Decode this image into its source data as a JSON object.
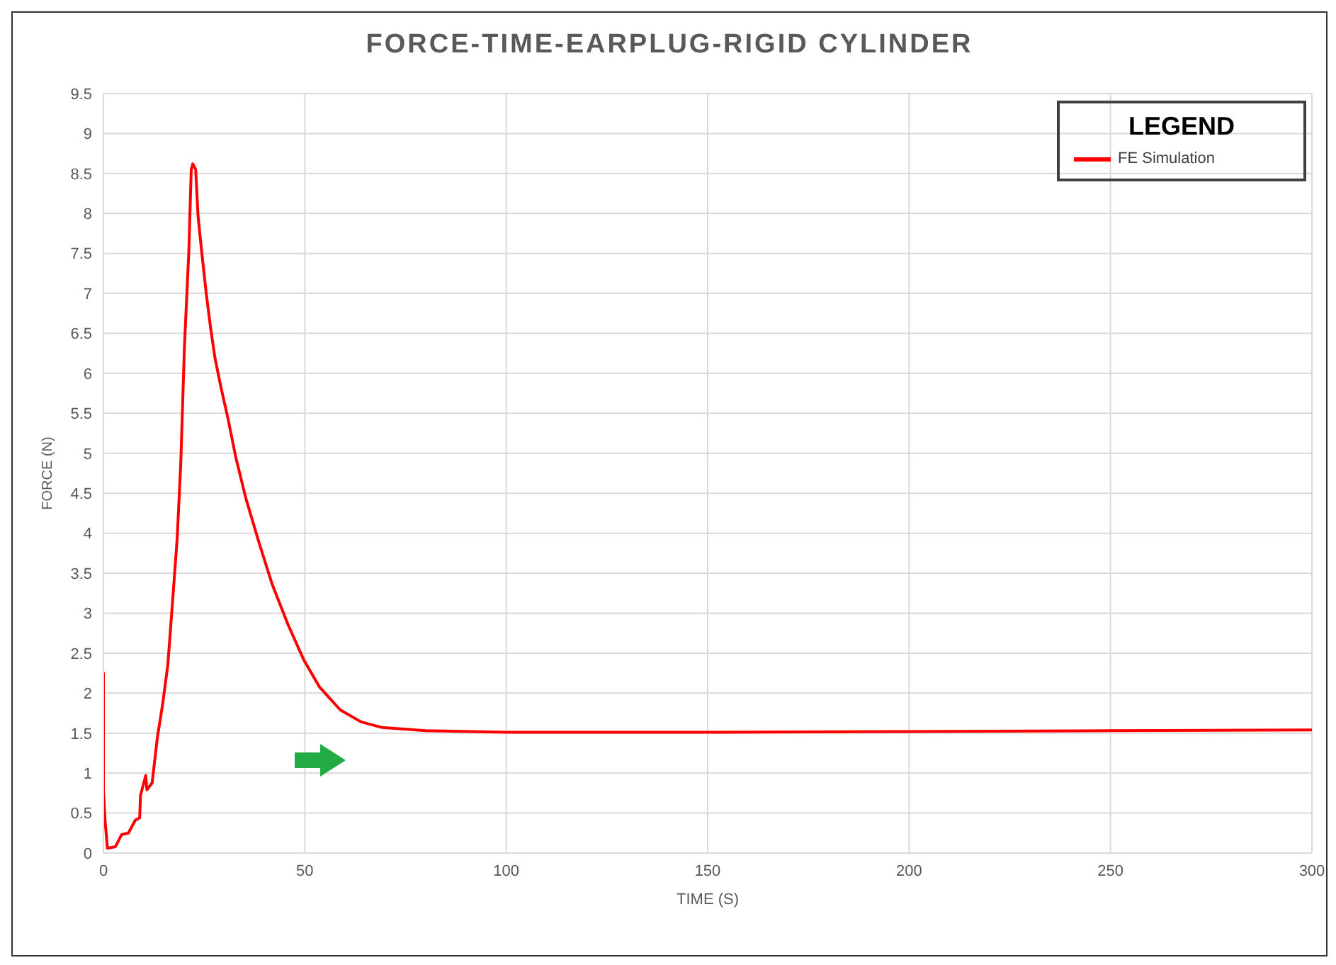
{
  "chart_data": {
    "type": "line",
    "title": "FORCE-TIME-EARPLUG-RIGID CYLINDER",
    "xlabel": "TIME (S)",
    "ylabel": "FORCE (N)",
    "legend_title": "LEGEND",
    "legend": "top right",
    "grid": true,
    "marker": "none",
    "line_style": "solid",
    "x": [
      0,
      0,
      0.4,
      1.0,
      3.0,
      4.5,
      6.2,
      7.9,
      9.0,
      9.2,
      10.5,
      10.8,
      12.1,
      13.4,
      14.7,
      16.0,
      17.3,
      18.3,
      19.2,
      20.1,
      21.2,
      21.8,
      22.2,
      22.9,
      23.5,
      24.4,
      25.5,
      26.6,
      27.7,
      29.2,
      30.9,
      32.9,
      35.4,
      38.7,
      41.9,
      45.8,
      49.7,
      53.6,
      58.8,
      64.0,
      69.2,
      80,
      100,
      150,
      200,
      250,
      300
    ],
    "series": [
      {
        "name": "FE Simulation",
        "color": "#ff0000",
        "values": [
          2.26,
          0.8,
          0.41,
          0.06,
          0.08,
          0.23,
          0.25,
          0.41,
          0.44,
          0.72,
          0.97,
          0.79,
          0.88,
          1.45,
          1.86,
          2.36,
          3.24,
          3.93,
          4.87,
          6.32,
          7.52,
          8.55,
          8.62,
          8.55,
          7.96,
          7.52,
          7.01,
          6.57,
          6.19,
          5.82,
          5.44,
          4.94,
          4.43,
          3.87,
          3.36,
          2.86,
          2.42,
          2.08,
          1.79,
          1.64,
          1.57,
          1.53,
          1.51,
          1.51,
          1.52,
          1.53,
          1.54
        ]
      }
    ],
    "xlim": [
      0,
      300
    ],
    "xticks": [
      0,
      50,
      100,
      150,
      200,
      250,
      300
    ],
    "ylim": [
      0,
      9.5
    ],
    "yticks": [
      0,
      0.5,
      1,
      1.5,
      2,
      2.5,
      3,
      3.5,
      4,
      4.5,
      5,
      5.5,
      6,
      6.5,
      7,
      7.5,
      8,
      8.5,
      9,
      9.5
    ]
  }
}
